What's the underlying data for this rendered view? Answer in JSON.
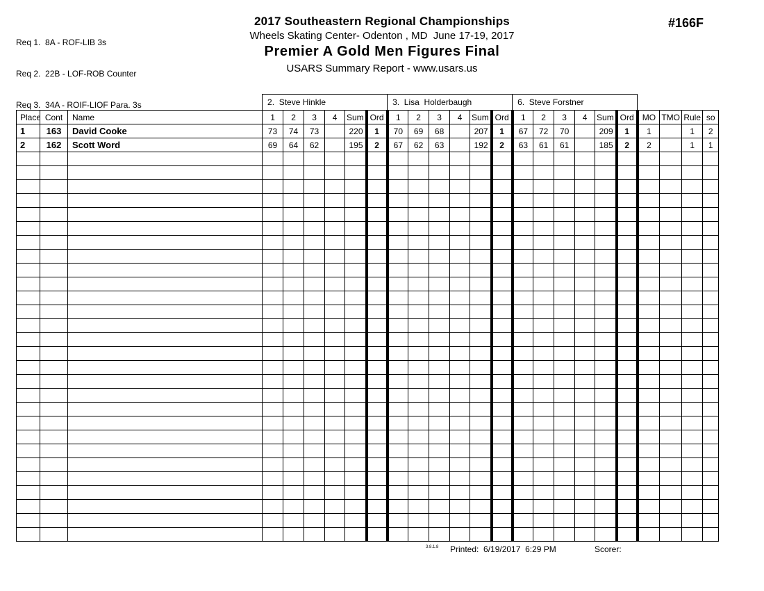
{
  "colors": {
    "text": "#000000",
    "background": "#ffffff",
    "grid": "#000000"
  },
  "header": {
    "requirements": [
      "Req 1.  8A - ROF-LIB 3s",
      "Req 2.  22B - LOF-ROB Counter",
      "Req 3.  34A - ROIF-LIOF Para. 3s"
    ],
    "title": "2017 Southeastern Regional Championships",
    "venue": "Wheels Skating Center- Odenton , MD  June 17-19, 2017",
    "event": "Premier A Gold Men Figures Final",
    "subtitle": "USARS Summary Report - www.usars.us",
    "event_number": "#166F"
  },
  "judges": [
    "2.  Steve Hinkle",
    "3.  Lisa  Holderbaugh",
    "6.  Steve Forstner"
  ],
  "table": {
    "headers": {
      "place": "Place",
      "cont": "Cont",
      "name": "Name",
      "score_cols": [
        "1",
        "2",
        "3",
        "4"
      ],
      "sum": "Sum",
      "ord": "Ord",
      "mo": "MO",
      "tmo": "TMO",
      "rule": "Rule",
      "so": "so"
    },
    "rows": [
      {
        "place": "1",
        "cont": "163",
        "name": "David Cooke",
        "judges": [
          {
            "scores": [
              "73",
              "74",
              "73",
              ""
            ],
            "sum": "220",
            "ord": "1"
          },
          {
            "scores": [
              "70",
              "69",
              "68",
              ""
            ],
            "sum": "207",
            "ord": "1"
          },
          {
            "scores": [
              "67",
              "72",
              "70",
              ""
            ],
            "sum": "209",
            "ord": "1"
          }
        ],
        "mo": "1",
        "tmo": "",
        "rule": "1",
        "so": "2"
      },
      {
        "place": "2",
        "cont": "162",
        "name": "Scott Word",
        "judges": [
          {
            "scores": [
              "69",
              "64",
              "62",
              ""
            ],
            "sum": "195",
            "ord": "2"
          },
          {
            "scores": [
              "67",
              "62",
              "63",
              ""
            ],
            "sum": "192",
            "ord": "2"
          },
          {
            "scores": [
              "63",
              "61",
              "61",
              ""
            ],
            "sum": "185",
            "ord": "2"
          }
        ],
        "mo": "2",
        "tmo": "",
        "rule": "1",
        "so": "1"
      }
    ],
    "empty_row_count": 28
  },
  "footer": {
    "version": "3.8.1.8",
    "printed": "Printed:  6/19/2017  6:29 PM",
    "scorer": "Scorer:"
  }
}
